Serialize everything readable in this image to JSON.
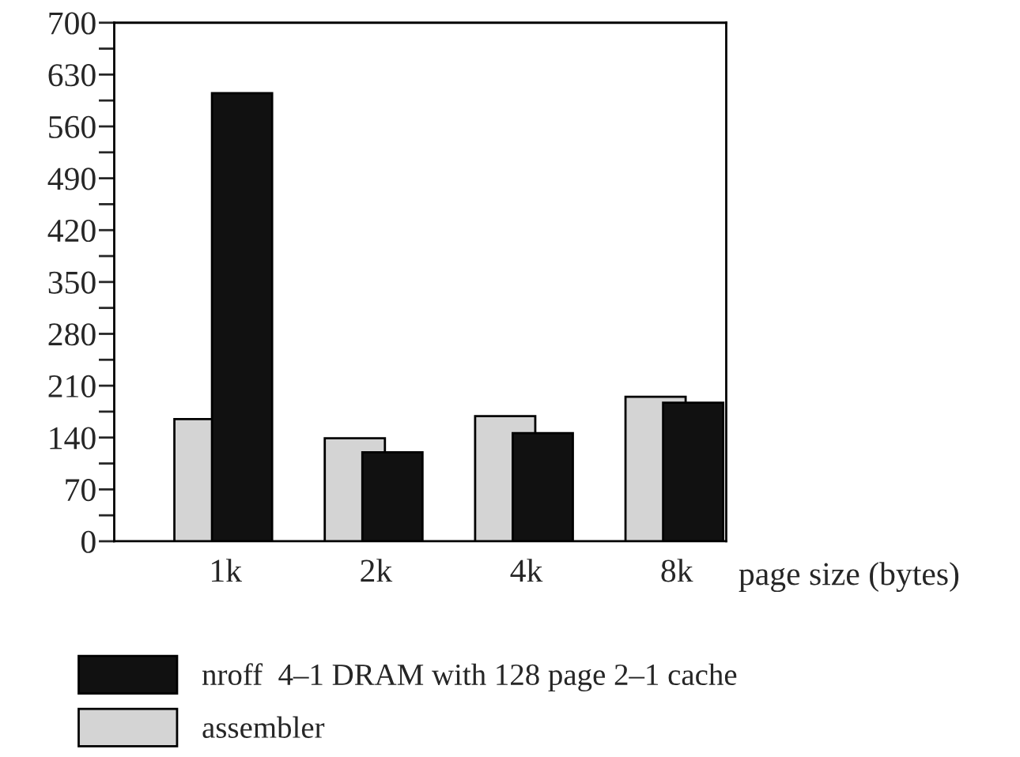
{
  "chart_data": {
    "type": "bar",
    "xlabel": "page size (bytes)",
    "categories": [
      "1k",
      "2k",
      "4k",
      "8k"
    ],
    "series": [
      {
        "name": "nroff  4–1 DRAM with 128 page 2–1 cache",
        "color": "#111111",
        "values": [
          605,
          120,
          146,
          187
        ]
      },
      {
        "name": "assembler",
        "color": "#d4d4d4",
        "values": [
          165,
          139,
          169,
          195
        ]
      }
    ],
    "ylim": [
      0,
      700
    ],
    "yticks": [
      0,
      {
        "value": 35,
        "label": null
      },
      70,
      {
        "value": 105,
        "label": null
      },
      140,
      {
        "value": 175,
        "label": null
      },
      210,
      {
        "value": 245,
        "label": null
      },
      280,
      {
        "value": 315,
        "label": null
      },
      350,
      {
        "value": 385,
        "label": null
      },
      420,
      {
        "value": 455,
        "label": null
      },
      490,
      {
        "value": 525,
        "label": null
      },
      560,
      {
        "value": 595,
        "label": null
      },
      630,
      {
        "value": 665,
        "label": null
      },
      700
    ],
    "grid": false,
    "legend": "bottom"
  }
}
